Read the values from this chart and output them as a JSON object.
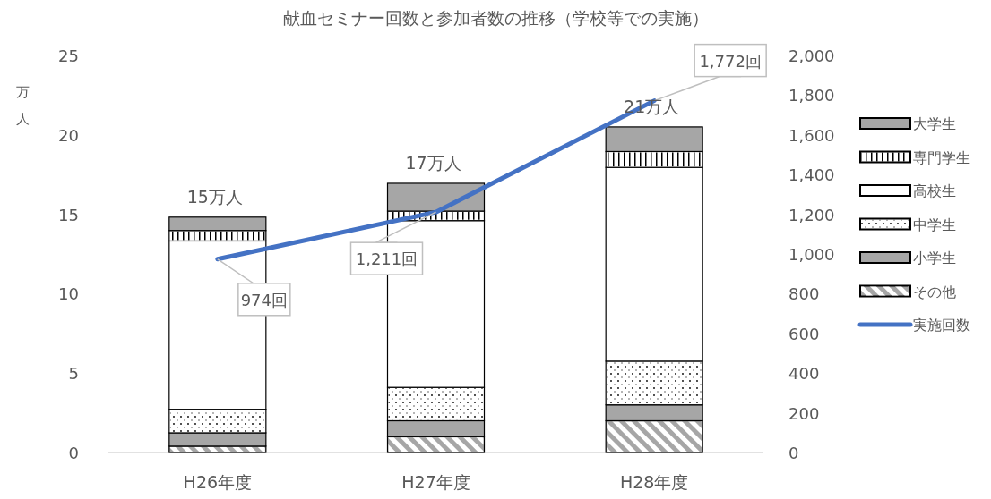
{
  "chart_data": {
    "type": "bar",
    "stacked": true,
    "title": "献血セミナー回数と参加者数の推移（学校等での実施）",
    "ylabel": "万人",
    "categories": [
      "H26年度",
      "H27年度",
      "H28年度"
    ],
    "series": [
      {
        "name": "その他",
        "color": "#a6a6a6",
        "values": [
          0.4,
          1.0,
          2.0
        ]
      },
      {
        "name": "小学生",
        "color": "#a6a6a6",
        "values": [
          0.84,
          1.0,
          1.0
        ]
      },
      {
        "name": "中学生",
        "color": "#ffffff",
        "values": [
          1.48,
          2.1,
          2.75
        ]
      },
      {
        "name": "高校生",
        "color": "#ffffff",
        "values": [
          10.6,
          10.5,
          12.2
        ]
      },
      {
        "name": "専門学生",
        "color": "#ffffff",
        "values": [
          0.66,
          0.6,
          1.0
        ]
      },
      {
        "name": "大学生",
        "color": "#a6a6a6",
        "values": [
          0.84,
          1.75,
          1.55
        ]
      },
      {
        "name": "実施回数",
        "type": "line",
        "axis": "y2",
        "color": "#4472c4",
        "marker": "none",
        "values": [
          974,
          1211,
          1772
        ],
        "value_labels": [
          "974回",
          "1,211回",
          "1,772回"
        ]
      }
    ],
    "totals": [
      "15万人",
      "17万人",
      "21万人"
    ],
    "ylim": [
      0,
      25
    ],
    "yticks": [
      0,
      5,
      10,
      15,
      20,
      25
    ],
    "y2lim": [
      0,
      2000
    ],
    "y2ticks": [
      0,
      {
        "value": 200,
        "label": "200"
      },
      {
        "value": 400,
        "label": "400"
      },
      {
        "value": 600,
        "label": "600"
      },
      {
        "value": 800,
        "label": "800"
      },
      {
        "value": 1000,
        "label": "1,000"
      },
      {
        "value": 1200,
        "label": "1,200"
      },
      {
        "value": 1400,
        "label": "1,400"
      },
      {
        "value": 1600,
        "label": "1,600"
      },
      {
        "value": 1800,
        "label": "1,800"
      },
      {
        "value": 2000,
        "label": "2,000"
      }
    ],
    "grid": false,
    "legend": "right"
  }
}
